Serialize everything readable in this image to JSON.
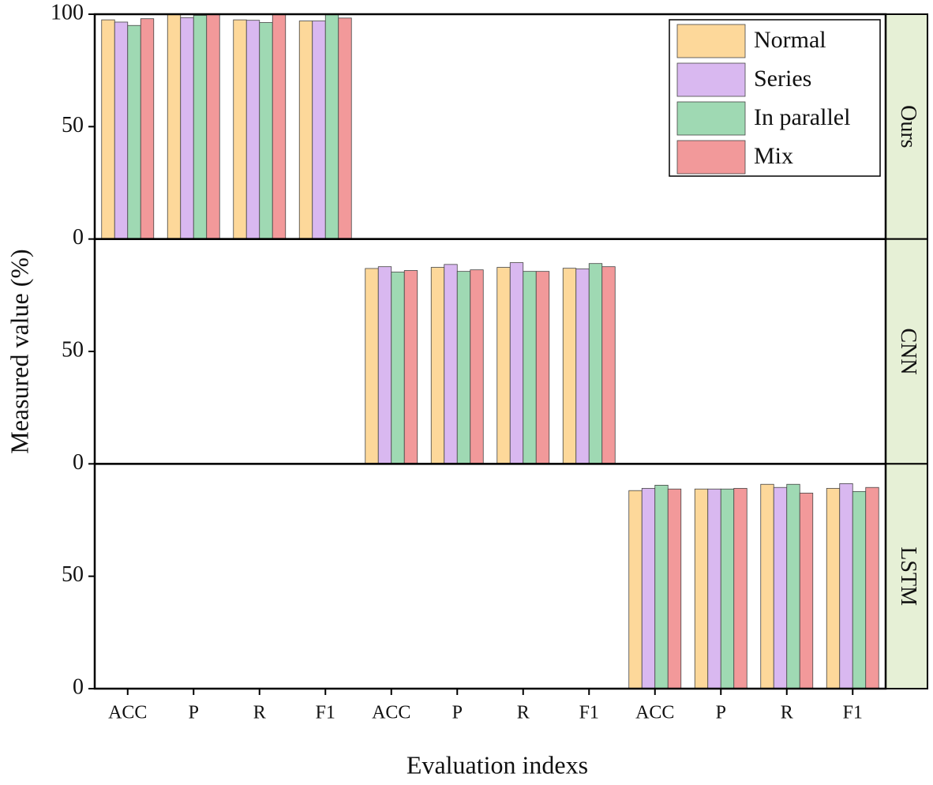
{
  "chart_data": {
    "type": "bar",
    "xlabel": "Evaluation indexs",
    "ylabel": "Measured value (%)",
    "categories": [
      "ACC",
      "P",
      "R",
      "F1",
      "ACC",
      "P",
      "R",
      "F1",
      "ACC",
      "P",
      "R",
      "F1"
    ],
    "series": [
      {
        "name": "Normal",
        "color": "#fdd89a",
        "values": [
          97.5,
          100,
          97.5,
          97,
          86.9,
          87.4,
          87.4,
          87,
          88.1,
          88.8,
          90.9,
          89.1
        ]
      },
      {
        "name": "Series",
        "color": "#d9b8f0",
        "values": [
          96.5,
          98.5,
          97.3,
          97,
          87.7,
          88.7,
          89.5,
          86.7,
          89.1,
          88.8,
          89.5,
          91.2
        ]
      },
      {
        "name": "In parallel",
        "color": "#9fd9b3",
        "values": [
          95,
          99.5,
          96.3,
          100,
          85.3,
          85.6,
          85.6,
          89.1,
          90.5,
          88.8,
          90.9,
          87.7
        ]
      },
      {
        "name": "Mix",
        "color": "#f2999a",
        "values": [
          98,
          100,
          100,
          98.3,
          86,
          86.3,
          85.6,
          87.7,
          88.8,
          89.1,
          87,
          89.5
        ]
      }
    ],
    "panels": [
      {
        "label": "Ours",
        "ylim": [
          0,
          100
        ],
        "yticks": [
          0,
          50,
          100
        ]
      },
      {
        "label": "CNN",
        "ylim": [
          0,
          100
        ],
        "yticks": [
          0,
          50
        ]
      },
      {
        "label": "LSTM",
        "ylim": [
          0,
          100
        ],
        "yticks": [
          0,
          50
        ]
      }
    ],
    "legend": "upper right",
    "strip_color": "#e6f0d6"
  }
}
